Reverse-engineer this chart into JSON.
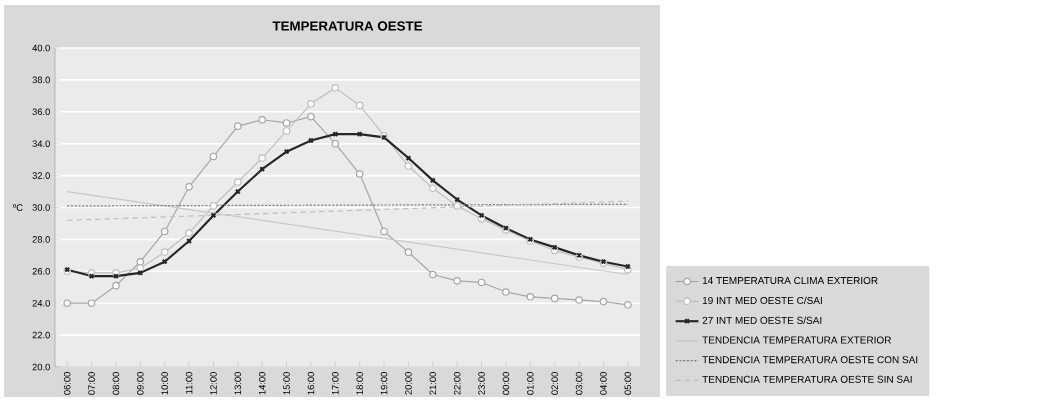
{
  "chart_data": {
    "type": "line",
    "title": "TEMPERATURA OESTE",
    "ylabel": "ºC",
    "categories": [
      "06:00",
      "07:00",
      "08:00",
      "09:00",
      "10:00",
      "11:00",
      "12:00",
      "13:00",
      "14:00",
      "15:00",
      "16:00",
      "17:00",
      "18:00",
      "19:00",
      "20:00",
      "21:00",
      "22:00",
      "23:00",
      "00:00",
      "01:00",
      "02:00",
      "03:00",
      "04:00",
      "05:00"
    ],
    "ylim": [
      20,
      40
    ],
    "yticks": [
      {
        "value": 20,
        "label": "20.0"
      },
      {
        "value": 22,
        "label": "22.0"
      },
      {
        "value": 24,
        "label": "24.0"
      },
      {
        "value": 26,
        "label": "26.0"
      },
      {
        "value": 28,
        "label": "28.0"
      },
      {
        "value": 30,
        "label": "30.0"
      },
      {
        "value": 32,
        "label": "32.0"
      },
      {
        "value": 34,
        "label": "34.0"
      },
      {
        "value": 36,
        "label": "36.0"
      },
      {
        "value": 38,
        "label": "38.0"
      },
      {
        "value": 40,
        "label": "40.0"
      }
    ],
    "grid": "y",
    "legend": "right",
    "series": [
      {
        "name": "14 TEMPERATURA CLIMA EXTERIOR",
        "color": "#a6a6a6",
        "marker": "circle",
        "line_style": "solid",
        "values": [
          24.0,
          24.0,
          25.1,
          26.6,
          28.5,
          31.3,
          33.2,
          35.1,
          35.5,
          35.3,
          35.7,
          34.0,
          32.1,
          28.5,
          27.2,
          25.8,
          25.4,
          25.3,
          24.7,
          24.4,
          24.3,
          24.2,
          24.1,
          23.9
        ]
      },
      {
        "name": "19 INT MED OESTE C/SAI",
        "color": "#bfbfbf",
        "marker": "circle",
        "line_style": "solid",
        "values": [
          26.0,
          25.9,
          25.9,
          26.2,
          27.2,
          28.4,
          30.1,
          31.6,
          33.1,
          34.8,
          36.5,
          37.5,
          36.4,
          34.5,
          32.6,
          31.2,
          30.1,
          29.3,
          28.6,
          27.9,
          27.3,
          26.9,
          26.5,
          26.1
        ]
      },
      {
        "name": "27 INT MED OESTE S/SAI",
        "color": "#262626",
        "marker": "cross",
        "line_style": "solid",
        "values": [
          26.1,
          25.7,
          25.7,
          25.9,
          26.6,
          27.9,
          29.5,
          31.0,
          32.4,
          33.5,
          34.2,
          34.6,
          34.6,
          34.4,
          33.1,
          31.7,
          30.5,
          29.5,
          28.7,
          28.0,
          27.5,
          27.0,
          26.6,
          26.3
        ]
      },
      {
        "name": "TENDENCIA TEMPERATURA EXTERIOR",
        "color": "#c8c8c8",
        "marker": "none",
        "line_style": "solid",
        "values": [
          31.0,
          null,
          null,
          null,
          null,
          null,
          null,
          null,
          null,
          null,
          null,
          null,
          null,
          null,
          null,
          null,
          null,
          null,
          null,
          null,
          null,
          null,
          null,
          25.8
        ]
      },
      {
        "name": "TENDENCIA TEMPERATURA OESTE CON SAI",
        "color": "#7f7f7f",
        "marker": "none",
        "line_style": "dotted",
        "values": [
          30.1,
          null,
          null,
          null,
          null,
          null,
          null,
          null,
          null,
          null,
          null,
          null,
          null,
          null,
          null,
          null,
          null,
          null,
          null,
          null,
          null,
          null,
          null,
          30.2
        ]
      },
      {
        "name": "TENDENCIA TEMPERATURA OESTE SIN SAI",
        "color": "#bfbfbf",
        "marker": "none",
        "line_style": "dashed",
        "values": [
          29.2,
          null,
          null,
          null,
          null,
          null,
          null,
          null,
          null,
          null,
          null,
          null,
          null,
          null,
          null,
          null,
          null,
          null,
          null,
          null,
          null,
          null,
          null,
          30.4
        ]
      }
    ]
  }
}
